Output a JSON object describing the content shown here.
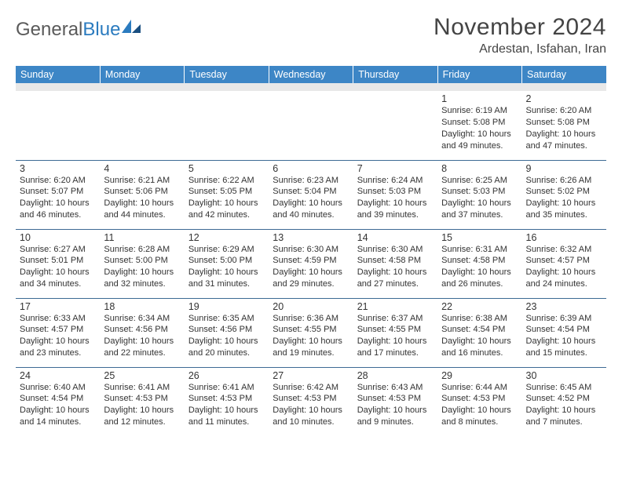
{
  "logo": {
    "text1": "General",
    "text2": "Blue"
  },
  "title": "November 2024",
  "location": "Ardestan, Isfahan, Iran",
  "colors": {
    "header_bg": "#3d86c6",
    "header_fg": "#ffffff",
    "row_divider": "#3d6a94",
    "spacer_bg": "#e8e8e8",
    "text": "#333333",
    "title_text": "#444444",
    "logo_gray": "#5a5a5a",
    "logo_blue": "#2b7bbf"
  },
  "day_headers": [
    "Sunday",
    "Monday",
    "Tuesday",
    "Wednesday",
    "Thursday",
    "Friday",
    "Saturday"
  ],
  "weeks": [
    [
      null,
      null,
      null,
      null,
      null,
      {
        "n": "1",
        "sr": "6:19 AM",
        "ss": "5:08 PM",
        "dl": "10 hours and 49 minutes."
      },
      {
        "n": "2",
        "sr": "6:20 AM",
        "ss": "5:08 PM",
        "dl": "10 hours and 47 minutes."
      }
    ],
    [
      {
        "n": "3",
        "sr": "6:20 AM",
        "ss": "5:07 PM",
        "dl": "10 hours and 46 minutes."
      },
      {
        "n": "4",
        "sr": "6:21 AM",
        "ss": "5:06 PM",
        "dl": "10 hours and 44 minutes."
      },
      {
        "n": "5",
        "sr": "6:22 AM",
        "ss": "5:05 PM",
        "dl": "10 hours and 42 minutes."
      },
      {
        "n": "6",
        "sr": "6:23 AM",
        "ss": "5:04 PM",
        "dl": "10 hours and 40 minutes."
      },
      {
        "n": "7",
        "sr": "6:24 AM",
        "ss": "5:03 PM",
        "dl": "10 hours and 39 minutes."
      },
      {
        "n": "8",
        "sr": "6:25 AM",
        "ss": "5:03 PM",
        "dl": "10 hours and 37 minutes."
      },
      {
        "n": "9",
        "sr": "6:26 AM",
        "ss": "5:02 PM",
        "dl": "10 hours and 35 minutes."
      }
    ],
    [
      {
        "n": "10",
        "sr": "6:27 AM",
        "ss": "5:01 PM",
        "dl": "10 hours and 34 minutes."
      },
      {
        "n": "11",
        "sr": "6:28 AM",
        "ss": "5:00 PM",
        "dl": "10 hours and 32 minutes."
      },
      {
        "n": "12",
        "sr": "6:29 AM",
        "ss": "5:00 PM",
        "dl": "10 hours and 31 minutes."
      },
      {
        "n": "13",
        "sr": "6:30 AM",
        "ss": "4:59 PM",
        "dl": "10 hours and 29 minutes."
      },
      {
        "n": "14",
        "sr": "6:30 AM",
        "ss": "4:58 PM",
        "dl": "10 hours and 27 minutes."
      },
      {
        "n": "15",
        "sr": "6:31 AM",
        "ss": "4:58 PM",
        "dl": "10 hours and 26 minutes."
      },
      {
        "n": "16",
        "sr": "6:32 AM",
        "ss": "4:57 PM",
        "dl": "10 hours and 24 minutes."
      }
    ],
    [
      {
        "n": "17",
        "sr": "6:33 AM",
        "ss": "4:57 PM",
        "dl": "10 hours and 23 minutes."
      },
      {
        "n": "18",
        "sr": "6:34 AM",
        "ss": "4:56 PM",
        "dl": "10 hours and 22 minutes."
      },
      {
        "n": "19",
        "sr": "6:35 AM",
        "ss": "4:56 PM",
        "dl": "10 hours and 20 minutes."
      },
      {
        "n": "20",
        "sr": "6:36 AM",
        "ss": "4:55 PM",
        "dl": "10 hours and 19 minutes."
      },
      {
        "n": "21",
        "sr": "6:37 AM",
        "ss": "4:55 PM",
        "dl": "10 hours and 17 minutes."
      },
      {
        "n": "22",
        "sr": "6:38 AM",
        "ss": "4:54 PM",
        "dl": "10 hours and 16 minutes."
      },
      {
        "n": "23",
        "sr": "6:39 AM",
        "ss": "4:54 PM",
        "dl": "10 hours and 15 minutes."
      }
    ],
    [
      {
        "n": "24",
        "sr": "6:40 AM",
        "ss": "4:54 PM",
        "dl": "10 hours and 14 minutes."
      },
      {
        "n": "25",
        "sr": "6:41 AM",
        "ss": "4:53 PM",
        "dl": "10 hours and 12 minutes."
      },
      {
        "n": "26",
        "sr": "6:41 AM",
        "ss": "4:53 PM",
        "dl": "10 hours and 11 minutes."
      },
      {
        "n": "27",
        "sr": "6:42 AM",
        "ss": "4:53 PM",
        "dl": "10 hours and 10 minutes."
      },
      {
        "n": "28",
        "sr": "6:43 AM",
        "ss": "4:53 PM",
        "dl": "10 hours and 9 minutes."
      },
      {
        "n": "29",
        "sr": "6:44 AM",
        "ss": "4:53 PM",
        "dl": "10 hours and 8 minutes."
      },
      {
        "n": "30",
        "sr": "6:45 AM",
        "ss": "4:52 PM",
        "dl": "10 hours and 7 minutes."
      }
    ]
  ],
  "labels": {
    "sunrise": "Sunrise:",
    "sunset": "Sunset:",
    "daylight": "Daylight:"
  }
}
